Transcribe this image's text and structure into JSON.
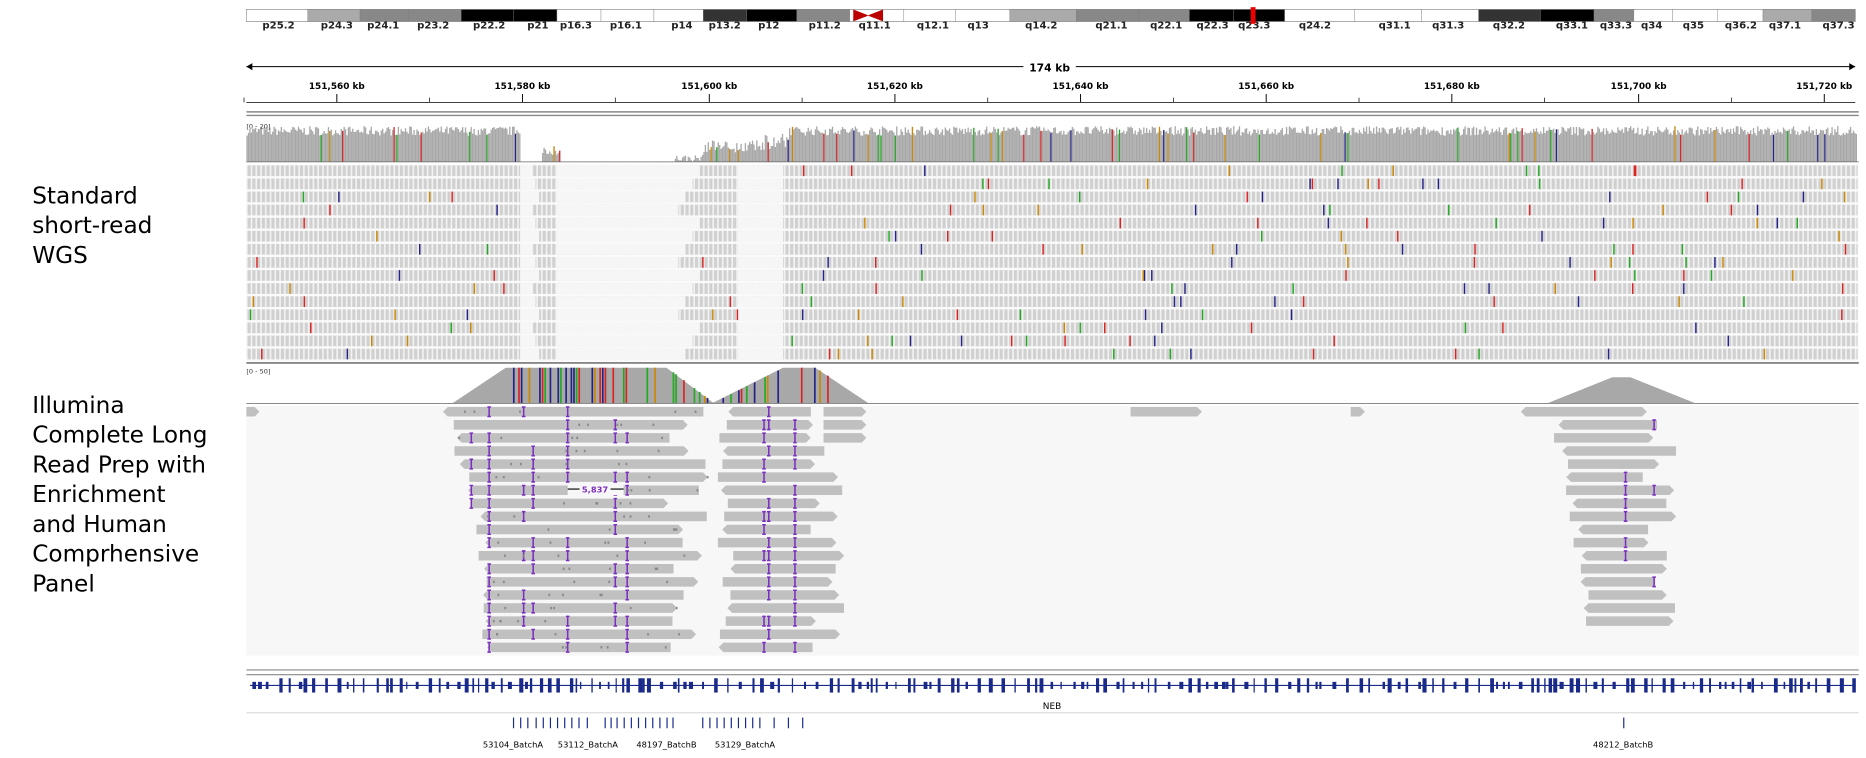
{
  "ideogram": {
    "bands": [
      "p25.2",
      "p24.3",
      "p24.1",
      "p23.2",
      "p22.2",
      "p21",
      "p16.3",
      "p16.1",
      "p14",
      "p13.2",
      "p12",
      "p11.2",
      "q11.1",
      "q12.1",
      "q13",
      "q14.2",
      "q21.1",
      "q22.1",
      "q22.3",
      "q23.3",
      "q24.2",
      "q31.1",
      "q31.3",
      "q32.2",
      "q33.1",
      "q33.3",
      "q34",
      "q35",
      "q36.2",
      "q37.1",
      "q37.3"
    ]
  },
  "ruler": {
    "span": "174 kb",
    "ticks": [
      "151,560 kb",
      "151,580 kb",
      "151,600 kb",
      "151,620 kb",
      "151,640 kb",
      "151,660 kb",
      "151,680 kb",
      "151,700 kb",
      "151,720 kb"
    ]
  },
  "tracks": [
    {
      "label_lines": [
        "Standard",
        "short-read",
        "WGS"
      ],
      "range": "[0 - 20]"
    },
    {
      "label_lines": [
        "Illumina",
        "Complete Long",
        "Read Prep with",
        "Enrichment",
        "and Human",
        "Comprhensive",
        "Panel"
      ],
      "range": "[0 - 50]",
      "deletion_label": "5,837"
    }
  ],
  "gene": {
    "name": "NEB"
  },
  "samples": [
    "53104_BatchA",
    "53112_BatchA",
    "48197_BatchB",
    "53129_BatchA",
    "48212_BatchB"
  ]
}
